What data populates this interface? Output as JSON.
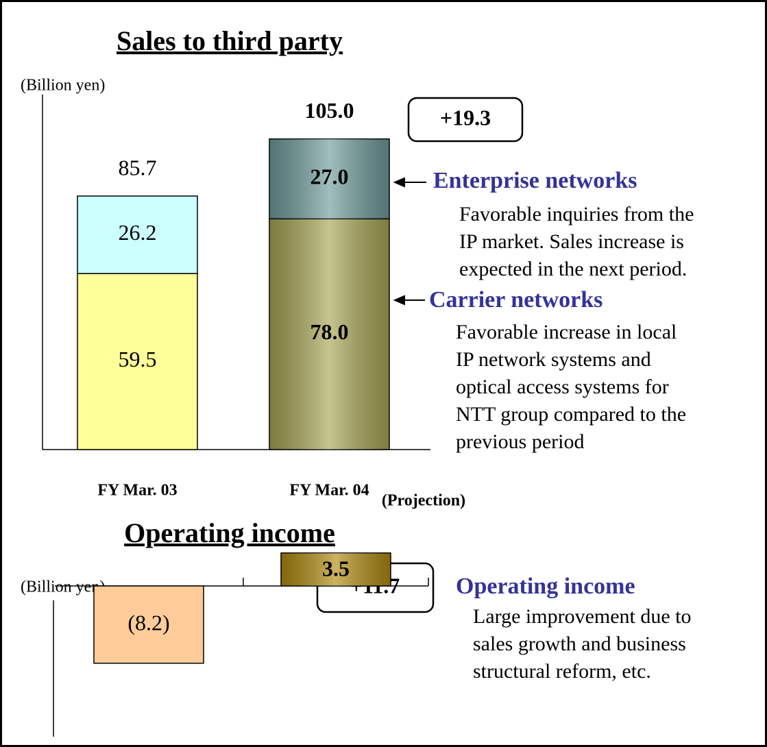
{
  "chart_data": [
    {
      "type": "stacked-bar",
      "title": "Sales to third party",
      "y_label": "(Billion yen)",
      "categories": [
        "FY Mar. 03",
        "FY Mar. 04"
      ],
      "category_note": "(Projection)",
      "ylim": [
        0,
        120
      ],
      "series": [
        {
          "name": "Carrier networks",
          "colors": [
            "#ffff99",
            "#a8a655"
          ],
          "values": [
            59.5,
            78
          ],
          "value_labels": [
            "59.5",
            "78.0"
          ],
          "description": [
            "Favorable increase in local",
            "IP network systems and",
            "optical access systems for",
            "NTT group compared to the",
            "previous period"
          ]
        },
        {
          "name": "Enterprise networks",
          "colors": [
            "#ccffff",
            "#6f9c9c"
          ],
          "values": [
            26.2,
            27
          ],
          "value_labels": [
            "26.2",
            "27.0"
          ],
          "description": [
            "Favorable inquiries from the",
            "IP market.  Sales increase is",
            "expected in the next period."
          ]
        }
      ],
      "totals": [
        85.7,
        105
      ],
      "total_labels": [
        "85.7",
        "105.0"
      ],
      "change": "+19.3"
    },
    {
      "type": "bar",
      "title": "Operating income",
      "y_label": "(Billion yen)",
      "ylim": [
        -16,
        4
      ],
      "values": [
        -8.2,
        3.5
      ],
      "value_labels": [
        "(8.2)",
        "3.5"
      ],
      "colors": [
        "#ffcc99",
        "#b08a10"
      ],
      "change": "+11.7",
      "heading": "Operating income",
      "description": [
        "Large improvement due to",
        "sales growth and business",
        "structural reform, etc."
      ]
    }
  ]
}
